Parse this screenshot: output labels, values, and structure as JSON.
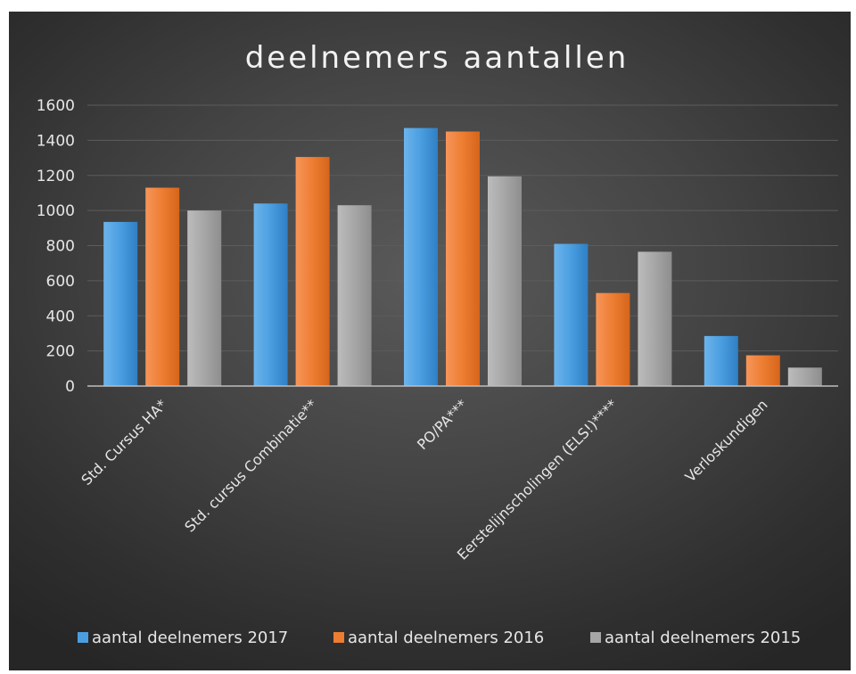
{
  "chart_data": {
    "type": "bar",
    "title": "deelnemers aantallen",
    "xlabel": "",
    "ylabel": "",
    "ylim": [
      0,
      1600
    ],
    "yticks": [
      0,
      200,
      400,
      600,
      800,
      1000,
      1200,
      1400,
      1600
    ],
    "grid": true,
    "legend_position": "bottom",
    "categories": [
      "Std. Cursus HA*",
      "Std. cursus Combinatie**",
      "PO/PA***",
      "Eerstelijnscholingen (ELS!)****",
      "Verloskundigen"
    ],
    "series": [
      {
        "name": "aantal deelnemers 2017",
        "color": "#4a9ee0",
        "values": [
          935,
          1040,
          1470,
          810,
          285
        ]
      },
      {
        "name": "aantal deelnemers 2016",
        "color": "#ed7d31",
        "values": [
          1130,
          1305,
          1450,
          530,
          175
        ]
      },
      {
        "name": "aantal deelnemers 2015",
        "color": "#a6a6a6",
        "values": [
          1000,
          1030,
          1195,
          765,
          105
        ]
      }
    ]
  }
}
